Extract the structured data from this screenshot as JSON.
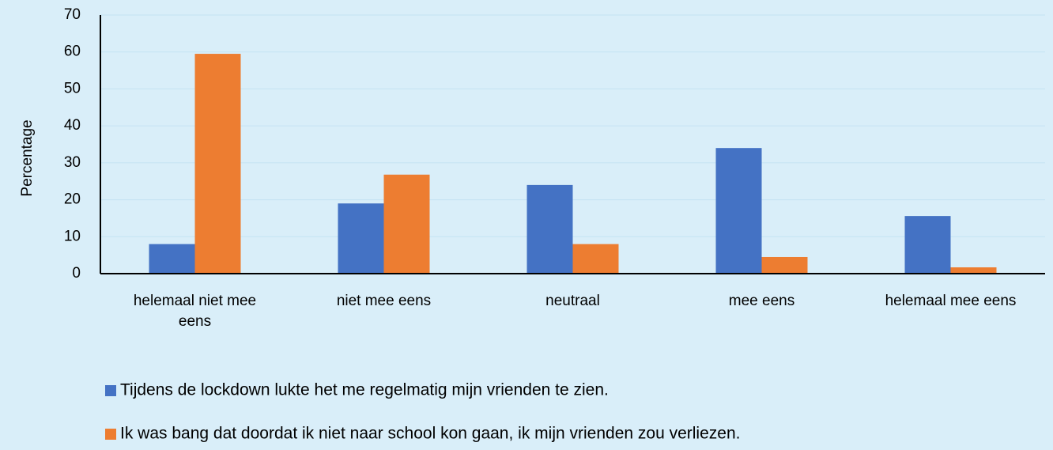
{
  "chart_data": {
    "type": "bar",
    "ylabel": "Percentage",
    "categories": [
      "helemaal niet mee eens",
      "niet mee eens",
      "neutraal",
      "mee eens",
      "helemaal mee eens"
    ],
    "series": [
      {
        "name": "Tijdens de lockdown lukte het me regelmatig mijn vrienden te zien.",
        "color": "#4472c4",
        "values": [
          8,
          19,
          24,
          34,
          15.6
        ]
      },
      {
        "name": "Ik was bang dat doordat ik niet naar school kon gaan, ik mijn vrienden zou verliezen.",
        "color": "#ed7d31",
        "values": [
          59.5,
          26.8,
          8,
          4.5,
          1.7
        ]
      }
    ],
    "ylim": [
      0,
      70
    ],
    "yticks": [
      0,
      10,
      20,
      30,
      40,
      50,
      60,
      70
    ],
    "grid": true
  }
}
